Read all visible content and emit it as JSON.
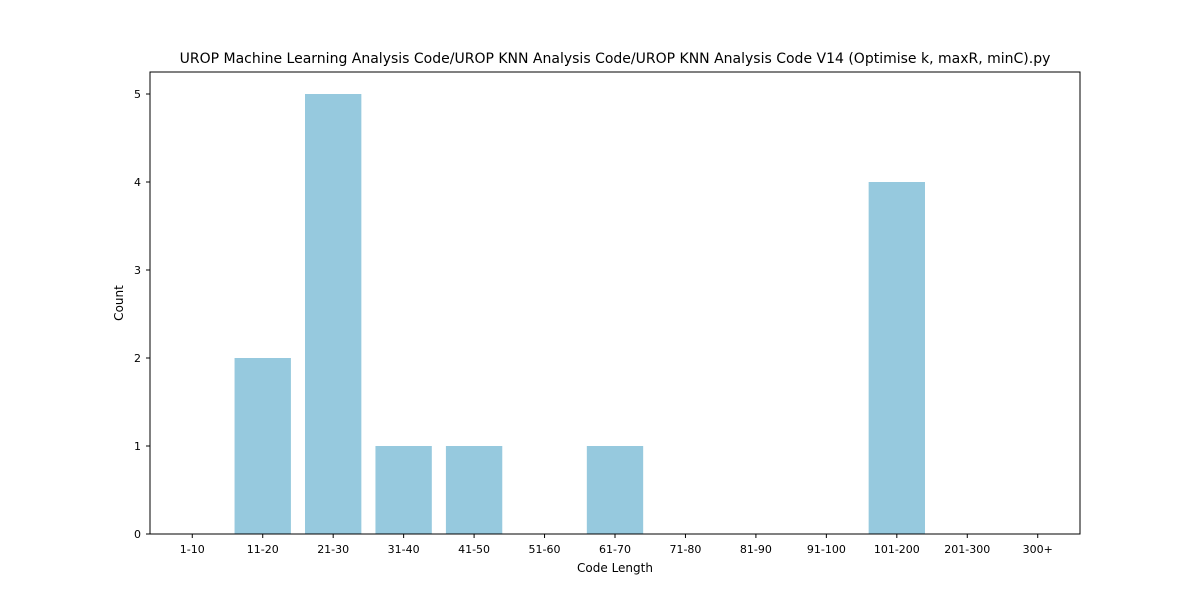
{
  "chart_data": {
    "type": "bar",
    "title": "UROP Machine Learning Analysis Code/UROP KNN Analysis Code/UROP KNN Analysis Code V14 (Optimise k, maxR, minC).py",
    "xlabel": "Code Length",
    "ylabel": "Count",
    "categories": [
      "1-10",
      "11-20",
      "21-30",
      "31-40",
      "41-50",
      "51-60",
      "61-70",
      "71-80",
      "81-90",
      "91-100",
      "101-200",
      "201-300",
      "300+"
    ],
    "values": [
      0,
      2,
      5,
      1,
      1,
      0,
      1,
      0,
      0,
      0,
      4,
      0,
      0
    ],
    "ylim": [
      0,
      5.25
    ],
    "yticks": [
      0,
      1,
      2,
      3,
      4,
      5
    ],
    "grid": false,
    "bar_color": "#96c9de"
  }
}
